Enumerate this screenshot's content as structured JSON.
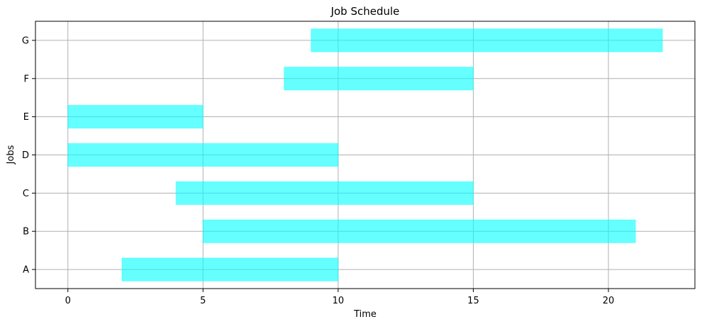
{
  "chart_data": {
    "type": "bar",
    "orientation": "horizontal",
    "title": "Job Schedule",
    "xlabel": "Time",
    "ylabel": "Jobs",
    "xlim": [
      -1.2,
      23.2
    ],
    "xticks": [
      0,
      5,
      10,
      15,
      20
    ],
    "grid": true,
    "bar_color": "#00ffff",
    "bar_opacity": 0.6,
    "tasks": [
      {
        "label": "A",
        "start": 2,
        "end": 10
      },
      {
        "label": "B",
        "start": 5,
        "end": 21
      },
      {
        "label": "C",
        "start": 4,
        "end": 15
      },
      {
        "label": "D",
        "start": 0,
        "end": 10
      },
      {
        "label": "E",
        "start": 0,
        "end": 5
      },
      {
        "label": "F",
        "start": 8,
        "end": 15
      },
      {
        "label": "G",
        "start": 9,
        "end": 22
      }
    ]
  }
}
